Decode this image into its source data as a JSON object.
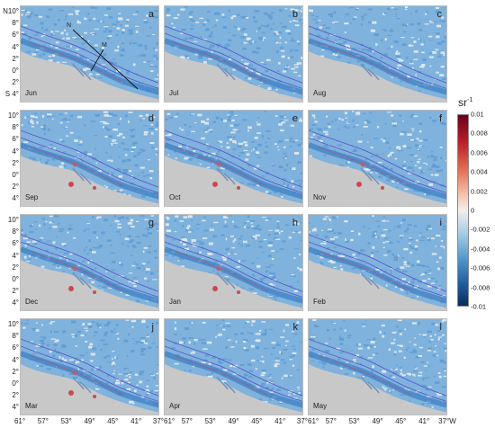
{
  "panels": [
    {
      "letter": "a",
      "month": "Jun"
    },
    {
      "letter": "b",
      "month": "Jul"
    },
    {
      "letter": "c",
      "month": "Aug"
    },
    {
      "letter": "d",
      "month": "Sep"
    },
    {
      "letter": "e",
      "month": "Oct"
    },
    {
      "letter": "f",
      "month": "Nov"
    },
    {
      "letter": "g",
      "month": "Dec"
    },
    {
      "letter": "h",
      "month": "Jan"
    },
    {
      "letter": "i",
      "month": "Feb"
    },
    {
      "letter": "j",
      "month": "Mar"
    },
    {
      "letter": "k",
      "month": "Apr"
    },
    {
      "letter": "l",
      "month": "May"
    }
  ],
  "transect_labels": {
    "n": "N",
    "m": "M"
  },
  "lat_ticks": [
    "N10°",
    "8°",
    "6°",
    "4°",
    "2°",
    "0°",
    "2°",
    "S 4°"
  ],
  "lat_ticks_plain": [
    "10°",
    "8°",
    "6°",
    "4°",
    "2°",
    "0°",
    "2°",
    "4°"
  ],
  "lon_ticks_row": [
    "61°",
    "57°",
    "53°",
    "49°",
    "45°",
    "41°",
    "37°"
  ],
  "lon_ticks_display": [
    "61°",
    "57°",
    "53°",
    "49°",
    "45°",
    "41°",
    "37°61°",
    "57°",
    "53°",
    "49°",
    "45°",
    "41°",
    "37°61°",
    "57°",
    "53°",
    "49°",
    "45°",
    "41°",
    "37°W"
  ],
  "colorbar": {
    "unit": "sr",
    "unit_exp": "-1",
    "ticks": [
      "0.01",
      "0.008",
      "0.006",
      "0.004",
      "0.002",
      "0",
      "-0.002",
      "-0.004",
      "-0.006",
      "-0.008",
      "-0.01"
    ],
    "range": [
      -0.01,
      0.01
    ],
    "colors": [
      "#6b0018",
      "#b81e2a",
      "#e26a52",
      "#f6c3ad",
      "#f2efee",
      "#a6cde6",
      "#4e95ca",
      "#225f9e",
      "#0a2c5e"
    ]
  },
  "map_colors": {
    "land": "#c8c8c8",
    "water": "#7fb2dc",
    "shelf": "#3f7fc4",
    "isobath": "#5a4fd0",
    "isobath_red": "#d83a5a"
  }
}
